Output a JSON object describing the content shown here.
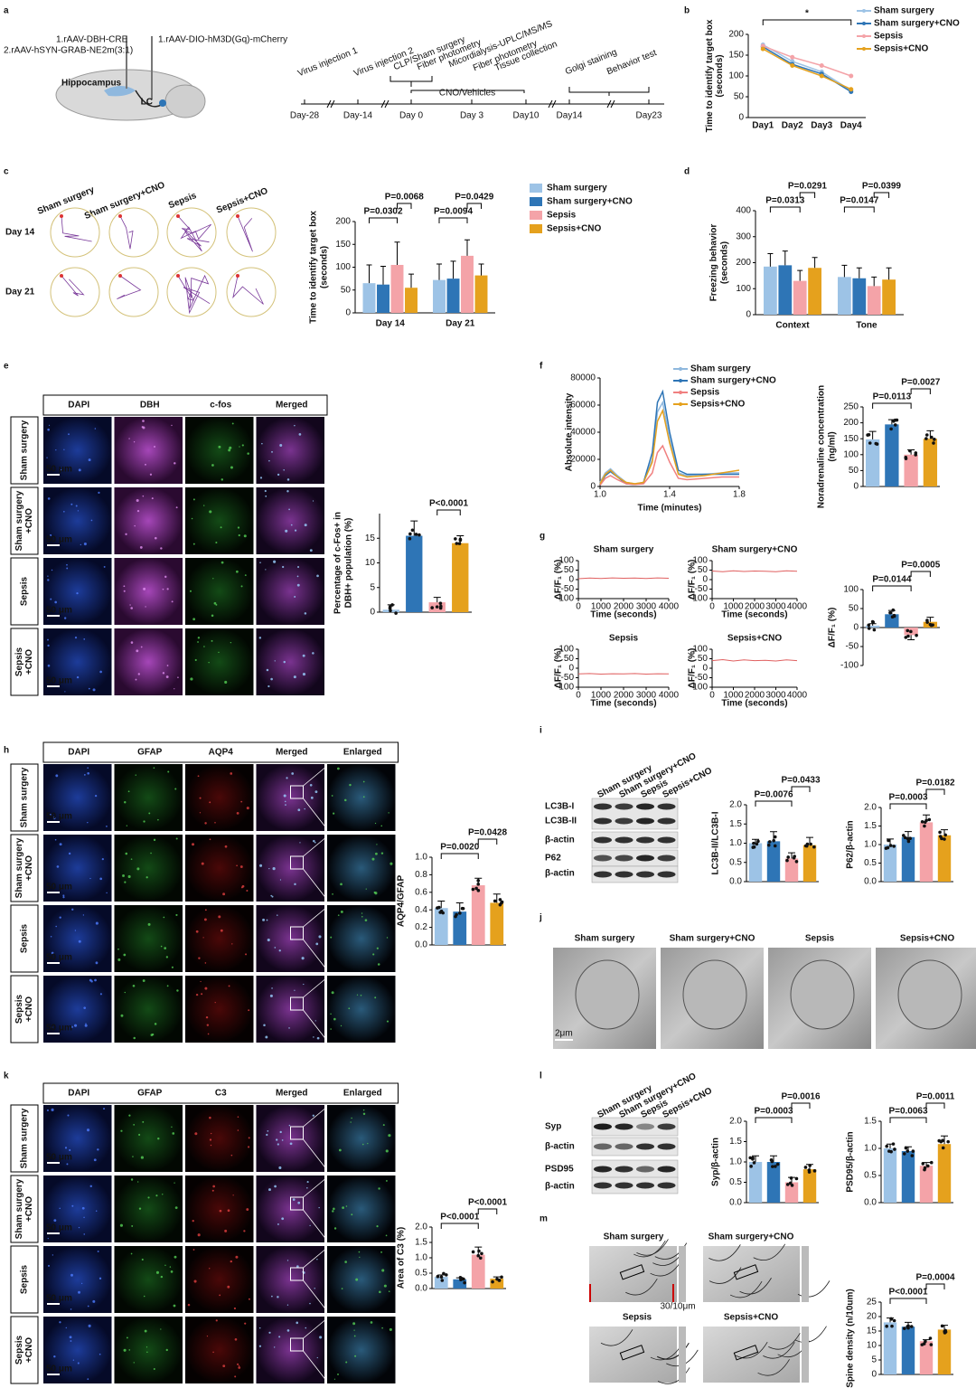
{
  "panel_labels": [
    "a",
    "b",
    "c",
    "d",
    "e",
    "f",
    "g",
    "h",
    "i",
    "j",
    "k",
    "l",
    "m"
  ],
  "panel_a": {
    "viruses": [
      "1.rAAV-DBH-CRE",
      "2.rAAV-hSYN-GRAB-NE2m(3:1)",
      "1.rAAV-DIO-hM3D(Gq)-mCherry"
    ],
    "brain_regions": [
      "Hippocampus",
      "LC"
    ],
    "events": [
      "Virus injection 1",
      "Virus injection 2",
      "CLP/Sham surgery",
      "Fiber photometry",
      "Micordialysis-UPLC/MS/MS",
      "Fiber photometry",
      "Tissue collection",
      "Golgi staining",
      "Behavior test"
    ],
    "cno": "CNO/Vehicles",
    "days": [
      "Day-28",
      "Day-14",
      "Day 0",
      "Day 3",
      "Day10",
      "Day14",
      "Day23"
    ]
  },
  "panel_c_maze": {
    "columns": [
      "Sham surgery",
      "Sham surgery+CNO",
      "Sepsis",
      "Sepsis+CNO"
    ],
    "rows": [
      "Day 14",
      "Day 21"
    ]
  },
  "panel_e_images": {
    "columns": [
      "DAPI",
      "DBH",
      "c-fos",
      "Merged"
    ],
    "rows": [
      [
        "Sham surgery"
      ],
      [
        "Sham surgery",
        "+CNO"
      ],
      [
        "Sepsis"
      ],
      [
        "Sepsis",
        "+CNO"
      ]
    ],
    "scale_bar": "50 μm"
  },
  "panel_h_images": {
    "columns": [
      "DAPI",
      "GFAP",
      "AQP4",
      "Merged",
      "Enlarged"
    ],
    "rows": [
      [
        "Sham surgery"
      ],
      [
        "Sham surgery",
        "+CNO"
      ],
      [
        "Sepsis"
      ],
      [
        "Sepsis",
        "+CNO"
      ]
    ],
    "scale_bar": "50 μm"
  },
  "panel_k_images": {
    "columns": [
      "DAPI",
      "GFAP",
      "C3",
      "Merged",
      "Enlarged"
    ],
    "rows": [
      [
        "Sham surgery"
      ],
      [
        "Sham surgery",
        "+CNO"
      ],
      [
        "Sepsis"
      ],
      [
        "Sepsis",
        "+CNO"
      ]
    ],
    "scale_bar": "50 μm"
  },
  "panel_i_blot": {
    "lanes": [
      "Sham surgery",
      "Sham surgery+CNO",
      "Sepsis",
      "Sepsis+CNO"
    ],
    "bands": [
      "LC3B-I",
      "LC3B-II",
      "β-actin",
      "P62",
      "β-actin"
    ]
  },
  "panel_l_blot": {
    "lanes": [
      "Sham surgery",
      "Sham surgery+CNO",
      "Sepsis",
      "Sepsis+CNO"
    ],
    "bands": [
      "Syp",
      "β-actin",
      "PSD95",
      "β-actin"
    ]
  },
  "panel_j_images": {
    "titles": [
      "Sham surgery",
      "Sham surgery+CNO",
      "Sepsis",
      "Sepsis+CNO"
    ],
    "scale_bar": "2μm"
  },
  "panel_m_images": {
    "titles": [
      "Sham surgery",
      "Sham surgery+CNO",
      "Sepsis",
      "Sepsis+CNO"
    ],
    "scale_bar": "30/10μm"
  },
  "chart_data": [
    {
      "type": "line",
      "ylabel": [
        "Time to identify target box",
        "(seconds)"
      ],
      "categories": [
        "Day1",
        "Day2",
        "Day3",
        "Day4"
      ],
      "series": [
        {
          "name": "Sham surgery",
          "color": "#9dc3e6",
          "values": [
            175,
            135,
            110,
            65
          ]
        },
        {
          "name": "Sham surgery+CNO",
          "color": "#2e75b6",
          "values": [
            170,
            128,
            105,
            62
          ]
        },
        {
          "name": "Sepsis",
          "color": "#f4a3a8",
          "values": [
            172,
            145,
            125,
            100
          ]
        },
        {
          "name": "Sepsis+CNO",
          "color": "#e5a11d",
          "values": [
            165,
            125,
            100,
            68
          ]
        }
      ],
      "ylim": [
        0,
        200
      ],
      "yticks": [
        0,
        50,
        100,
        150,
        200
      ],
      "annotations": [
        "*"
      ]
    },
    {
      "type": "bar",
      "ylabel": [
        "Time to identify target box",
        "(seconds)"
      ],
      "categories": [
        "Day 14",
        "Day 21"
      ],
      "series": [
        {
          "name": "Sham surgery",
          "color": "#9dc3e6",
          "values": [
            65,
            72
          ],
          "errors": [
            40,
            35
          ]
        },
        {
          "name": "Sham surgery+CNO",
          "color": "#2e75b6",
          "values": [
            62,
            75
          ],
          "errors": [
            40,
            38
          ]
        },
        {
          "name": "Sepsis",
          "color": "#f4a3a8",
          "values": [
            105,
            125
          ],
          "errors": [
            50,
            35
          ]
        },
        {
          "name": "Sepsis+CNO",
          "color": "#e5a11d",
          "values": [
            55,
            82
          ],
          "errors": [
            30,
            25
          ]
        }
      ],
      "ylim": [
        0,
        200
      ],
      "yticks": [
        0,
        50,
        100,
        150,
        200
      ],
      "annotations": [
        "P=0.0302",
        "P=0.0068",
        "P=0.0094",
        "P=0.0429"
      ]
    },
    {
      "type": "bar",
      "ylabel": [
        "Freezing behavior",
        "(seconds)"
      ],
      "categories": [
        "Context",
        "Tone"
      ],
      "series": [
        {
          "color": "#9dc3e6",
          "values": [
            185,
            145
          ],
          "errors": [
            50,
            45
          ]
        },
        {
          "color": "#2e75b6",
          "values": [
            190,
            140
          ],
          "errors": [
            55,
            40
          ]
        },
        {
          "color": "#f4a3a8",
          "values": [
            130,
            110
          ],
          "errors": [
            40,
            35
          ]
        },
        {
          "color": "#e5a11d",
          "values": [
            180,
            135
          ],
          "errors": [
            40,
            45
          ]
        }
      ],
      "ylim": [
        0,
        400
      ],
      "yticks": [
        0,
        100,
        200,
        300,
        400
      ],
      "annotations": [
        "P=0.0313",
        "P=0.0291",
        "P=0.0147",
        "P=0.0399"
      ]
    },
    {
      "type": "bar",
      "ylabel": [
        "Percentage of c-Fos+ in",
        "DBH+ population (%)"
      ],
      "values": [
        0.5,
        15.5,
        2,
        14
      ],
      "errors": [
        1,
        3,
        1,
        1.5
      ],
      "colors": [
        "#9dc3e6",
        "#2e75b6",
        "#f4a3a8",
        "#e5a11d"
      ],
      "ylim": [
        0,
        20
      ],
      "yticks": [
        0,
        5,
        10,
        15
      ],
      "annotations": [
        "P<0.0001"
      ]
    },
    {
      "type": "line",
      "xlabel": "Time (minutes)",
      "ylabel": "Absolute intensity",
      "x": [
        1,
        1.03,
        1.06,
        1.1,
        1.15,
        1.2,
        1.25,
        1.3,
        1.33,
        1.36,
        1.4,
        1.45,
        1.5,
        1.6,
        1.7,
        1.8
      ],
      "series": [
        {
          "name": "Sham surgery",
          "color": "#8fb8de",
          "values": [
            3000,
            10000,
            13000,
            8000,
            3000,
            2000,
            3000,
            20000,
            55000,
            62000,
            35000,
            10000,
            8000,
            9000,
            10000,
            10000
          ]
        },
        {
          "name": "Sham surgery+CNO",
          "color": "#2e75b6",
          "values": [
            2000,
            8000,
            11000,
            7000,
            2000,
            1500,
            3000,
            25000,
            62000,
            70000,
            40000,
            12000,
            9000,
            9000,
            9000,
            9000
          ]
        },
        {
          "name": "Sepsis",
          "color": "#f08080",
          "values": [
            1000,
            6000,
            8000,
            5000,
            2000,
            1500,
            2000,
            10000,
            25000,
            30000,
            18000,
            6000,
            5000,
            6000,
            7000,
            7000
          ]
        },
        {
          "name": "Sepsis+CNO",
          "color": "#e5a11d",
          "values": [
            2000,
            9000,
            12000,
            7000,
            3000,
            2000,
            3000,
            18000,
            48000,
            56000,
            32000,
            9000,
            7000,
            8000,
            10000,
            12000
          ]
        }
      ],
      "xlim": [
        1,
        1.8
      ],
      "xticks": [
        {
          "value": 1,
          "label": "1.0"
        },
        1.4,
        1.8
      ],
      "ylim": [
        0,
        80000
      ],
      "yticks": [
        0,
        20000,
        40000,
        60000,
        80000
      ]
    },
    {
      "type": "bar",
      "ylabel": [
        "Noradrenaline concentration",
        "(ng/ml)"
      ],
      "values": [
        148,
        195,
        100,
        150
      ],
      "errors": [
        25,
        15,
        15,
        25
      ],
      "colors": [
        "#9dc3e6",
        "#2e75b6",
        "#f4a3a8",
        "#e5a11d"
      ],
      "ylim": [
        0,
        250
      ],
      "yticks": [
        0,
        50,
        100,
        150,
        200,
        250
      ],
      "annotations": [
        "P=0.0113",
        "P=0.0027"
      ]
    },
    {
      "type": "line",
      "title": "Sham surgery",
      "xlabel": "Time (seconds)",
      "ylabel": "ΔF/F₁ (%)",
      "x": [
        0,
        500,
        1000,
        1500,
        2000,
        2500,
        3000,
        3500,
        4000
      ],
      "series": [
        {
          "color": "#e06060",
          "values": [
            5,
            8,
            6,
            9,
            7,
            8,
            6,
            9,
            7
          ]
        }
      ],
      "xlim": [
        0,
        4000
      ],
      "xticks": [
        0,
        1000,
        2000,
        3000,
        4000
      ],
      "ylim": [
        -100,
        100
      ],
      "yticks": [
        -100,
        -50,
        0,
        50,
        100
      ]
    },
    {
      "type": "line",
      "title": "Sham surgery+CNO",
      "xlabel": "Time (seconds)",
      "ylabel": "ΔF/F₁ (%)",
      "x": [
        0,
        500,
        1000,
        1500,
        2000,
        2500,
        3000,
        3500,
        4000
      ],
      "series": [
        {
          "color": "#e06060",
          "values": [
            45,
            42,
            46,
            43,
            45,
            44,
            42,
            46,
            44
          ]
        }
      ],
      "xlim": [
        0,
        4000
      ],
      "xticks": [
        0,
        1000,
        2000,
        3000,
        4000
      ],
      "ylim": [
        -100,
        100
      ],
      "yticks": [
        -100,
        -50,
        0,
        50,
        100
      ]
    },
    {
      "type": "line",
      "title": "Sepsis",
      "xlabel": "Time (seconds)",
      "ylabel": "ΔF/F₁ (%)",
      "x": [
        0,
        500,
        1000,
        1500,
        2000,
        2500,
        3000,
        3500,
        4000
      ],
      "series": [
        {
          "color": "#e06060",
          "values": [
            -30,
            -28,
            -31,
            -29,
            -30,
            -28,
            -31,
            -29,
            -30
          ]
        }
      ],
      "xlim": [
        0,
        4000
      ],
      "xticks": [
        0,
        1000,
        2000,
        3000,
        4000
      ],
      "ylim": [
        -100,
        100
      ],
      "yticks": [
        -100,
        -50,
        0,
        50,
        100
      ]
    },
    {
      "type": "line",
      "title": "Sepsis+CNO",
      "xlabel": "Time (seconds)",
      "ylabel": "ΔF/F₁ (%)",
      "x": [
        0,
        500,
        1000,
        1500,
        2000,
        2500,
        3000,
        3500,
        4000
      ],
      "series": [
        {
          "color": "#e06060",
          "values": [
            40,
            45,
            38,
            44,
            40,
            42,
            38,
            44,
            40
          ]
        }
      ],
      "xlim": [
        0,
        4000
      ],
      "xticks": [
        0,
        1000,
        2000,
        3000,
        4000
      ],
      "ylim": [
        -100,
        100
      ],
      "yticks": [
        -100,
        -50,
        0,
        50,
        100
      ]
    },
    {
      "type": "bar",
      "ylabel": "ΔF/F₁ (%)",
      "values": [
        5,
        35,
        -20,
        15
      ],
      "errors": [
        5,
        10,
        12,
        12
      ],
      "colors": [
        "#9dc3e6",
        "#2e75b6",
        "#f4a3a8",
        "#e5a11d"
      ],
      "ylim": [
        -100,
        100
      ],
      "yticks": [
        -100,
        -50,
        0,
        50,
        100
      ],
      "annotations": [
        "P=0.0144",
        "P=0.0005"
      ]
    },
    {
      "type": "bar",
      "ylabel": "AQP4/GFAP",
      "values": [
        0.42,
        0.38,
        0.68,
        0.48
      ],
      "errors": [
        0.08,
        0.1,
        0.08,
        0.1
      ],
      "colors": [
        "#9dc3e6",
        "#2e75b6",
        "#f4a3a8",
        "#e5a11d"
      ],
      "ylim": [
        0,
        1
      ],
      "yticks": [
        {
          "value": 0,
          "label": "0.0"
        },
        0.2,
        0.4,
        0.6,
        0.8,
        {
          "value": 1,
          "label": "1.0"
        }
      ],
      "annotations": [
        "P=0.0020",
        "P=0.0428"
      ]
    },
    {
      "type": "bar",
      "ylabel": "LC3B-II/LC3B-I",
      "values": [
        1.0,
        1.05,
        0.6,
        0.95
      ],
      "errors": [
        0.1,
        0.25,
        0.15,
        0.2
      ],
      "colors": [
        "#9dc3e6",
        "#2e75b6",
        "#f4a3a8",
        "#e5a11d"
      ],
      "ylim": [
        0,
        2
      ],
      "yticks": [
        {
          "value": 0,
          "label": "0.0"
        },
        0.5,
        {
          "value": 1,
          "label": "1.0"
        },
        1.5,
        {
          "value": 2,
          "label": "2.0"
        }
      ],
      "annotations": [
        "P=0.0076",
        "P=0.0433"
      ]
    },
    {
      "type": "bar",
      "ylabel": "P62/β-actin",
      "values": [
        1.0,
        1.2,
        1.6,
        1.25
      ],
      "errors": [
        0.15,
        0.15,
        0.2,
        0.15
      ],
      "colors": [
        "#9dc3e6",
        "#2e75b6",
        "#f4a3a8",
        "#e5a11d"
      ],
      "ylim": [
        0,
        2
      ],
      "yticks": [
        {
          "value": 0,
          "label": "0.0"
        },
        0.5,
        {
          "value": 1,
          "label": "1.0"
        },
        1.5,
        {
          "value": 2,
          "label": "2.0"
        }
      ],
      "annotations": [
        "P=0.0003",
        "P=0.0182"
      ]
    },
    {
      "type": "bar",
      "ylabel": "Area of C3 (%)",
      "values": [
        0.38,
        0.3,
        1.1,
        0.32
      ],
      "errors": [
        0.06,
        0.05,
        0.25,
        0.06
      ],
      "colors": [
        "#9dc3e6",
        "#2e75b6",
        "#f4a3a8",
        "#e5a11d"
      ],
      "ylim": [
        0,
        2
      ],
      "yticks": [
        {
          "value": 0,
          "label": "0.0"
        },
        0.5,
        {
          "value": 1,
          "label": "1.0"
        },
        1.5,
        {
          "value": 2,
          "label": "2.0"
        }
      ],
      "annotations": [
        "P<0.0001",
        "P<0.0001"
      ]
    },
    {
      "type": "bar",
      "ylabel": "Syp/β-actin",
      "values": [
        1.0,
        1.0,
        0.5,
        0.82
      ],
      "errors": [
        0.15,
        0.15,
        0.12,
        0.12
      ],
      "colors": [
        "#9dc3e6",
        "#2e75b6",
        "#f4a3a8",
        "#e5a11d"
      ],
      "ylim": [
        0,
        2
      ],
      "yticks": [
        {
          "value": 0,
          "label": "0.0"
        },
        0.5,
        {
          "value": 1,
          "label": "1.0"
        },
        1.5,
        {
          "value": 2,
          "label": "2.0"
        }
      ],
      "annotations": [
        "P=0.0003",
        "P=0.0016"
      ]
    },
    {
      "type": "bar",
      "ylabel": "PSD95/β-actin",
      "values": [
        1.0,
        0.95,
        0.68,
        1.08
      ],
      "errors": [
        0.08,
        0.08,
        0.06,
        0.15
      ],
      "colors": [
        "#9dc3e6",
        "#2e75b6",
        "#f4a3a8",
        "#e5a11d"
      ],
      "ylim": [
        0,
        1.5
      ],
      "yticks": [
        {
          "value": 0,
          "label": "0.0"
        },
        0.5,
        {
          "value": 1,
          "label": "1.0"
        },
        1.5
      ],
      "annotations": [
        "P=0.0063",
        "P=0.0011"
      ]
    },
    {
      "type": "bar",
      "ylabel": "Spine density (n/10um)",
      "values": [
        18,
        16.5,
        11.5,
        15.5
      ],
      "errors": [
        1.5,
        1.5,
        0.5,
        1.5
      ],
      "colors": [
        "#9dc3e6",
        "#2e75b6",
        "#f4a3a8",
        "#e5a11d"
      ],
      "ylim": [
        0,
        25
      ],
      "yticks": [
        0,
        5,
        10,
        15,
        20,
        25
      ],
      "annotations": [
        "P<0.0001",
        "P=0.0004"
      ]
    }
  ]
}
